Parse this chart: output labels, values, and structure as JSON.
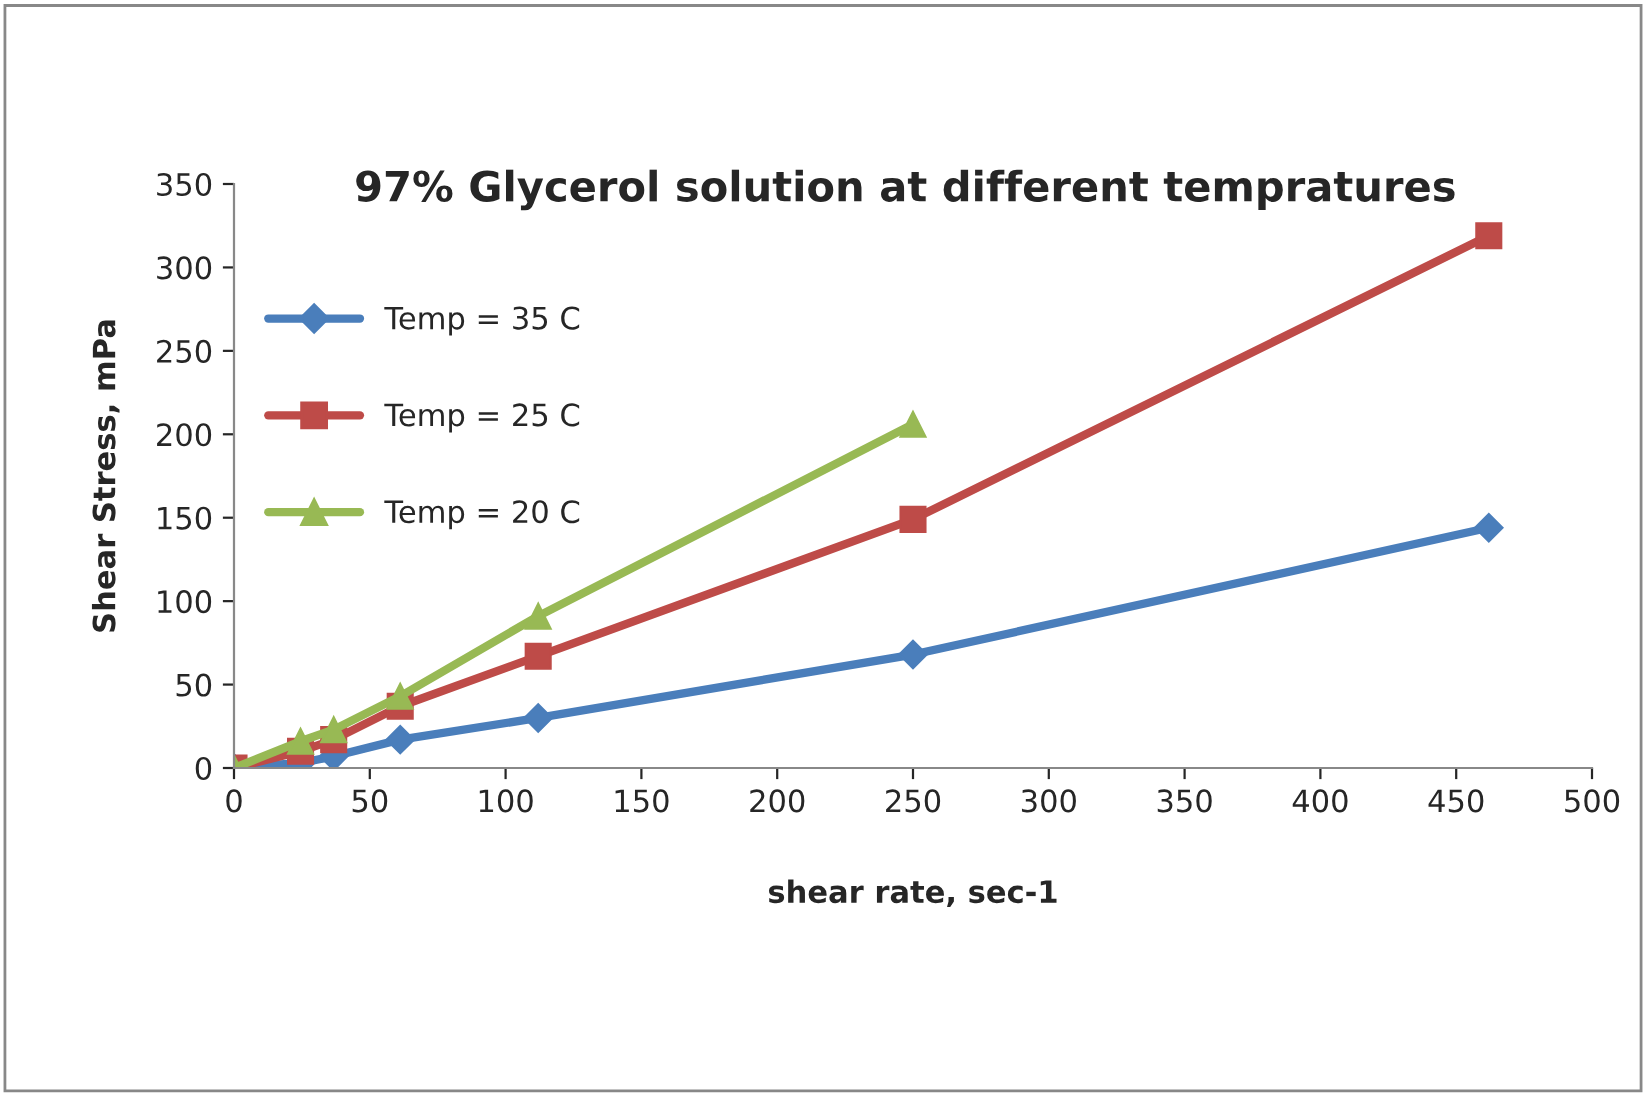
{
  "chart_data": {
    "type": "line",
    "title": "97% Glycerol solution at different tempratures",
    "xlabel": "shear rate, sec-1",
    "ylabel": "Shear Stress, mPa",
    "x": [
      0,
      24.5,
      36.7,
      61.2,
      112,
      250,
      462
    ],
    "series": [
      {
        "name": "Temp = 35 C",
        "color": "#4a7ebb",
        "marker": "diamond",
        "values": [
          0,
          3,
          7,
          17,
          30,
          68,
          144
        ]
      },
      {
        "name": "Temp = 25 C",
        "color": "#be4b48",
        "marker": "square",
        "values": [
          0,
          10,
          17,
          37,
          67,
          149,
          319
        ]
      },
      {
        "name": "Temp = 20 C",
        "color": "#98b954",
        "marker": "triangle",
        "values": [
          0,
          16,
          23,
          43,
          91,
          206,
          null
        ]
      }
    ],
    "xlim": [
      0,
      500
    ],
    "xticks": [
      0,
      50,
      100,
      150,
      200,
      250,
      300,
      350,
      400,
      450,
      500
    ],
    "ylim": [
      0,
      350
    ],
    "yticks": [
      0,
      50,
      100,
      150,
      200,
      250,
      300,
      350
    ],
    "grid": false,
    "legend": "left",
    "line_style": "solid"
  }
}
